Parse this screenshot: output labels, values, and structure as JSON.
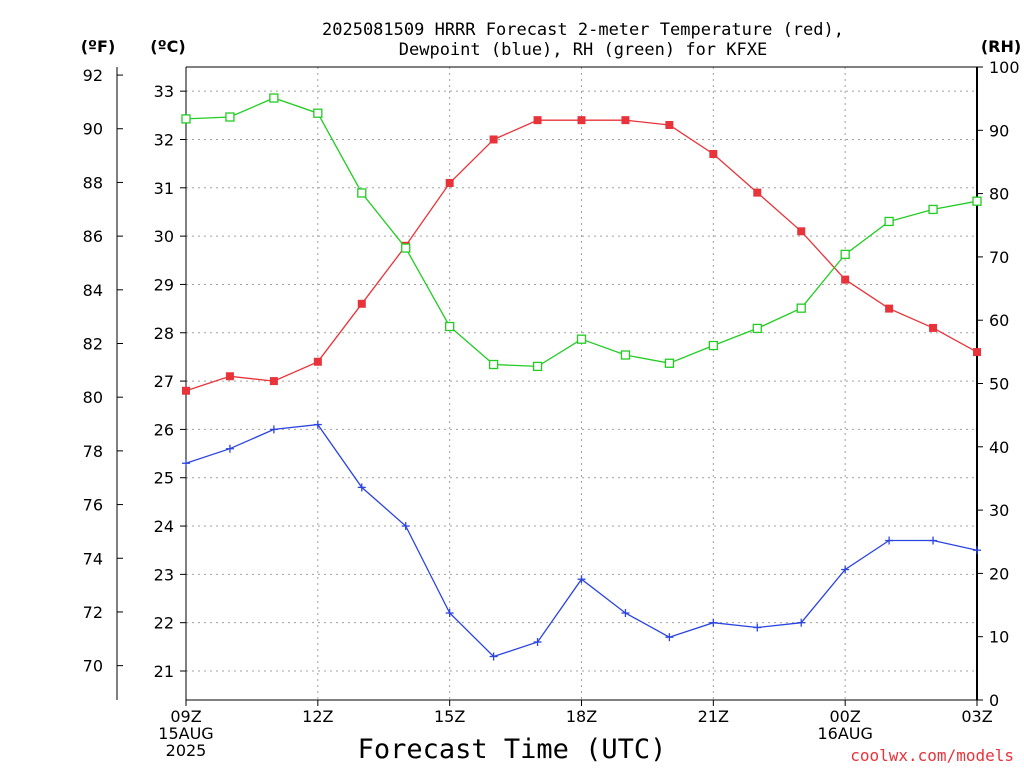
{
  "title_line1": "2025081509 HRRR Forecast 2-meter Temperature (red),",
  "title_line2": "Dewpoint (blue), RH (green) for KFXE",
  "unit_f": "(ºF)",
  "unit_c": "(ºC)",
  "unit_rh": "(RH)",
  "xlabel": "Forecast Time (UTC)",
  "credit": "coolwx.com/models",
  "colors": {
    "temperature": "#e8333a",
    "dewpoint": "#2b44e0",
    "rh": "#22cc22",
    "grid": "#a0a0a0"
  },
  "chart_data": {
    "type": "line",
    "x_hours": [
      0,
      1,
      2,
      3,
      4,
      5,
      6,
      7,
      8,
      9,
      10,
      11,
      12,
      13,
      14,
      15,
      16,
      17,
      18
    ],
    "x_tick_labels": [
      {
        "hour": 0,
        "lines": [
          "09Z",
          "15AUG",
          "2025"
        ]
      },
      {
        "hour": 3,
        "lines": [
          "12Z"
        ]
      },
      {
        "hour": 6,
        "lines": [
          "15Z"
        ]
      },
      {
        "hour": 9,
        "lines": [
          "18Z"
        ]
      },
      {
        "hour": 12,
        "lines": [
          "21Z"
        ]
      },
      {
        "hour": 15,
        "lines": [
          "00Z",
          "16AUG"
        ]
      },
      {
        "hour": 18,
        "lines": [
          "03Z"
        ]
      }
    ],
    "y_celsius_range": [
      20.4,
      33.5
    ],
    "y_celsius_ticks": [
      21,
      22,
      23,
      24,
      25,
      26,
      27,
      28,
      29,
      30,
      31,
      32,
      33
    ],
    "y_fahrenheit_ticks": [
      70,
      72,
      74,
      76,
      78,
      80,
      82,
      84,
      86,
      88,
      90,
      92
    ],
    "y_rh_range": [
      0,
      100
    ],
    "y_rh_ticks": [
      0,
      10,
      20,
      30,
      40,
      50,
      60,
      70,
      80,
      90,
      100
    ],
    "grid": true,
    "series": [
      {
        "name": "Temperature (red)",
        "axis": "celsius",
        "marker": "filled-square",
        "values": [
          26.8,
          27.1,
          27.0,
          27.4,
          28.6,
          29.8,
          31.1,
          32.0,
          32.4,
          32.4,
          32.4,
          32.3,
          31.7,
          30.9,
          30.1,
          29.1,
          28.5,
          28.1,
          27.6
        ]
      },
      {
        "name": "Dewpoint (blue)",
        "axis": "celsius",
        "marker": "plus",
        "values": [
          25.3,
          25.6,
          26.0,
          26.1,
          24.8,
          24.0,
          22.2,
          21.3,
          21.6,
          22.9,
          22.2,
          21.7,
          22.0,
          21.9,
          22.0,
          23.1,
          23.7,
          23.7,
          23.5
        ]
      },
      {
        "name": "RH (green)",
        "axis": "rh",
        "marker": "open-square",
        "values": [
          91.8,
          92.1,
          95.1,
          92.7,
          80.1,
          71.4,
          59.0,
          53.0,
          52.7,
          57.0,
          54.5,
          53.2,
          56.0,
          58.7,
          61.9,
          70.4,
          75.6,
          77.5,
          78.8
        ]
      }
    ]
  }
}
